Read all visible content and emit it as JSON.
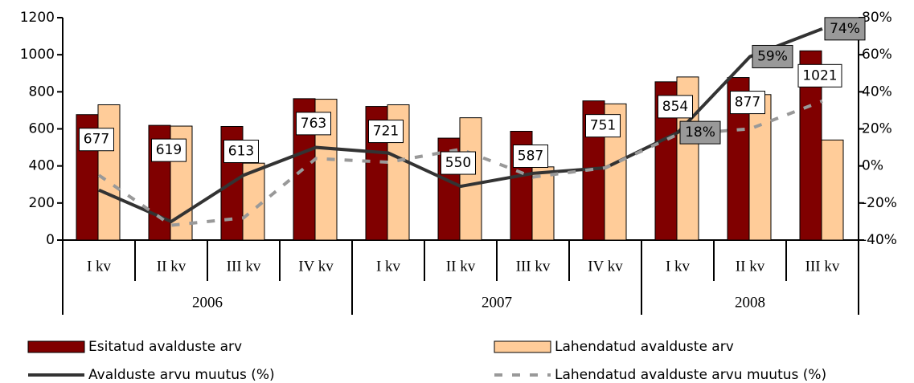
{
  "chart_data": {
    "type": "bar_line",
    "groups": [
      {
        "name": "2006",
        "categories": [
          "I kv",
          "II kv",
          "III kv",
          "IV kv"
        ]
      },
      {
        "name": "2007",
        "categories": [
          "I kv",
          "II kv",
          "III kv",
          "IV kv"
        ]
      },
      {
        "name": "2008",
        "categories": [
          "I kv",
          "II kv",
          "III kv"
        ]
      }
    ],
    "series": [
      {
        "name": "Esitatud avalduste arv",
        "kind": "bar",
        "color": "#800000",
        "data_labels": true,
        "values": [
          677,
          619,
          613,
          763,
          721,
          550,
          587,
          751,
          854,
          877,
          1021
        ]
      },
      {
        "name": "Lahendatud avalduste arv",
        "kind": "bar",
        "color": "#ffcc99",
        "values": [
          730,
          615,
          415,
          760,
          730,
          660,
          395,
          735,
          880,
          785,
          540
        ]
      },
      {
        "name": "Avalduste arvu muutus (%)",
        "kind": "line",
        "axis": "y2",
        "color": "#333333",
        "dash": false,
        "values": [
          -13,
          -30,
          -5,
          10,
          7,
          -11,
          -4,
          -1,
          18,
          59,
          74
        ],
        "value_labels": [
          null,
          null,
          null,
          null,
          null,
          null,
          null,
          null,
          "18%",
          "59%",
          "74%"
        ]
      },
      {
        "name": "Lahendatud avalduste arvu muutus (%)",
        "kind": "line",
        "axis": "y2",
        "color": "#999999",
        "dash": true,
        "values": [
          -5,
          -32,
          -28,
          4,
          2,
          9,
          -6,
          -1,
          17,
          20,
          35
        ]
      }
    ],
    "ylim": [
      0,
      1200
    ],
    "yticks": [
      0,
      200,
      400,
      600,
      800,
      1000,
      1200
    ],
    "y2lim": [
      -40,
      80
    ],
    "y2ticks": [
      {
        "value": -40,
        "label": "-40%"
      },
      {
        "value": -20,
        "label": "-20%"
      },
      {
        "value": 0,
        "label": "0%"
      },
      {
        "value": 20,
        "label": "20%"
      },
      {
        "value": 40,
        "label": "40%"
      },
      {
        "value": 60,
        "label": "60%"
      },
      {
        "value": 80,
        "label": "80%"
      }
    ],
    "legend": "bottom"
  }
}
